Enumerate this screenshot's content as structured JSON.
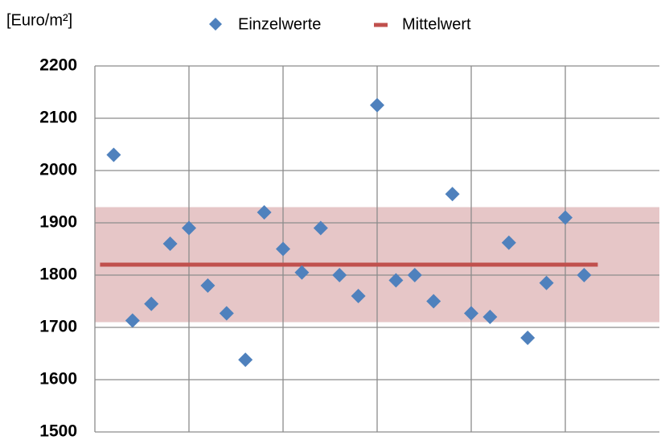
{
  "chart_data": {
    "type": "scatter",
    "y_label": "[Euro/m²]",
    "x": [
      1,
      2,
      3,
      4,
      5,
      6,
      7,
      8,
      9,
      10,
      11,
      12,
      13,
      14,
      15,
      16,
      17,
      18,
      19,
      20,
      21,
      22,
      23,
      24,
      25,
      26
    ],
    "series": [
      {
        "name": "Einzelwerte",
        "color": "#4f81bd",
        "values": [
          2030,
          1713,
          1745,
          1860,
          1890,
          1780,
          1727,
          1638,
          1920,
          1850,
          1805,
          1890,
          1800,
          1760,
          2125,
          1790,
          1800,
          1750,
          1955,
          1727,
          1720,
          1862,
          1680,
          1785,
          1910,
          1800
        ]
      }
    ],
    "mean": {
      "name": "Mittelwert",
      "color": "#c0504d",
      "value": 1820
    },
    "band": {
      "range": [
        1710,
        1930
      ],
      "color": "#e6c6c7"
    },
    "xlim": [
      0,
      30
    ],
    "xticks": [
      5,
      10,
      15,
      20,
      25
    ],
    "ylim": [
      1500,
      2200
    ],
    "yticks": [
      1500,
      1600,
      1700,
      1800,
      1900,
      2000,
      2100,
      2200
    ],
    "grid": true
  }
}
